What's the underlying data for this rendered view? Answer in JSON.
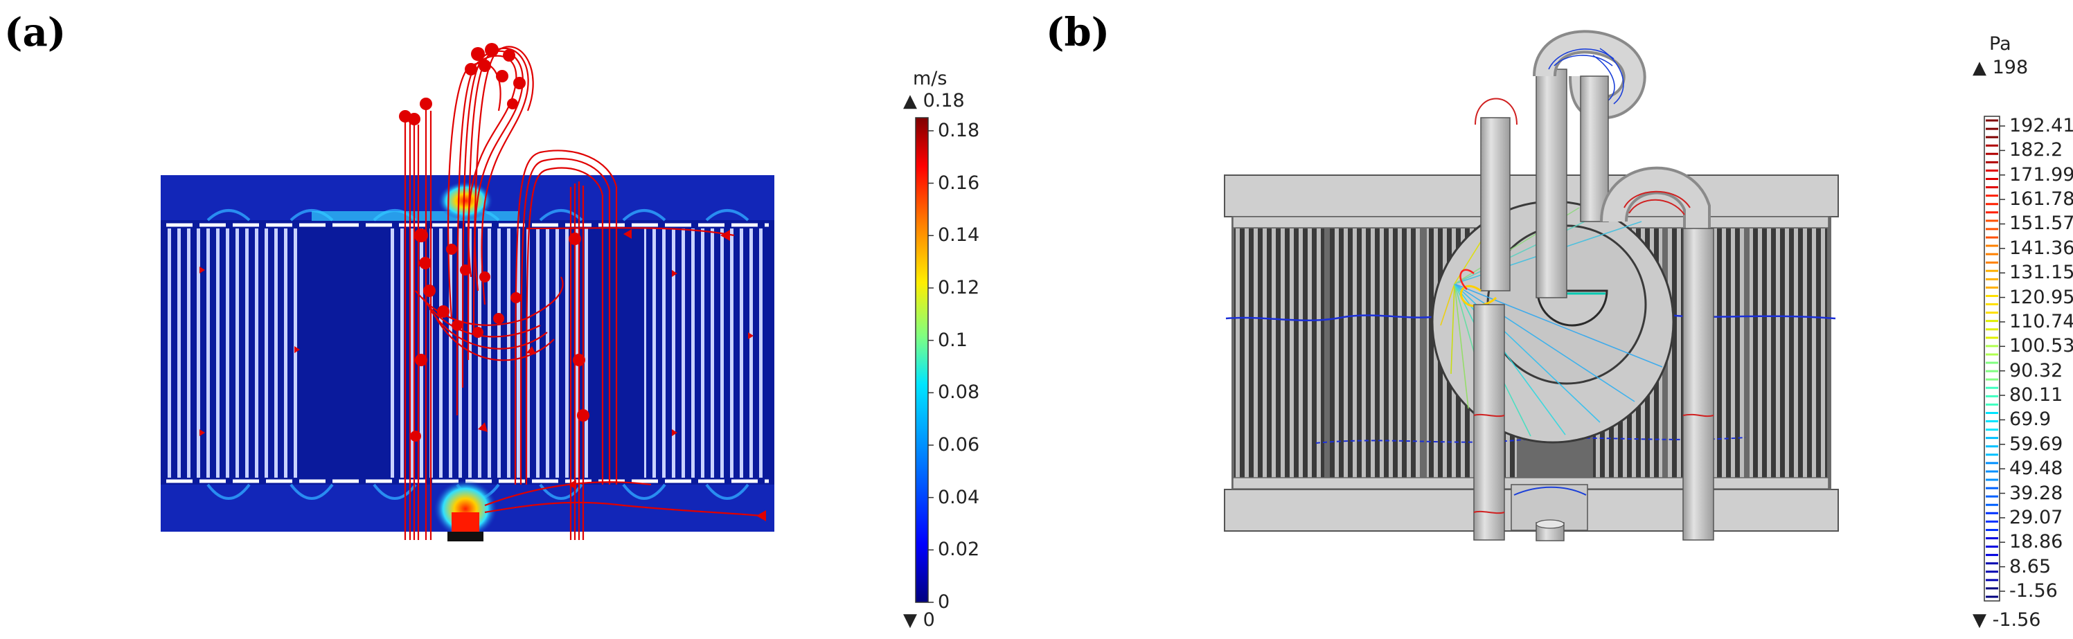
{
  "panel_a": {
    "label": "(a)",
    "unit": "m/s",
    "max_label": "0.18",
    "min_label": "0",
    "ticks": [
      "0.18",
      "0.16",
      "0.14",
      "0.12",
      "0.1",
      "0.08",
      "0.06",
      "0.04",
      "0.02",
      "0"
    ],
    "tick_values": [
      0.18,
      0.16,
      0.14,
      0.12,
      0.1,
      0.08,
      0.06,
      0.04,
      0.02,
      0
    ],
    "range": [
      0,
      0.185
    ],
    "colormap": "rainbow",
    "colors": {
      "low": "#00007f",
      "mid": "#00ffd0",
      "high": "#7f0000",
      "streamline": "#e00000",
      "field_bg": "#0a1a9c"
    }
  },
  "panel_b": {
    "label": "(b)",
    "unit": "Pa",
    "max_label": "198",
    "min_label": "-1.56",
    "ticks": [
      "192.41",
      "182.2",
      "171.99",
      "161.78",
      "151.57",
      "141.36",
      "131.15",
      "120.95",
      "110.74",
      "100.53",
      "90.32",
      "80.11",
      "69.9",
      "59.69",
      "49.48",
      "39.28",
      "29.07",
      "18.86",
      "8.65",
      "-1.56"
    ],
    "colormap": "rainbow-contour",
    "colors": {
      "body": "#c8c8c8",
      "body_dark": "#4a4a4a",
      "outline": "#505050"
    }
  }
}
